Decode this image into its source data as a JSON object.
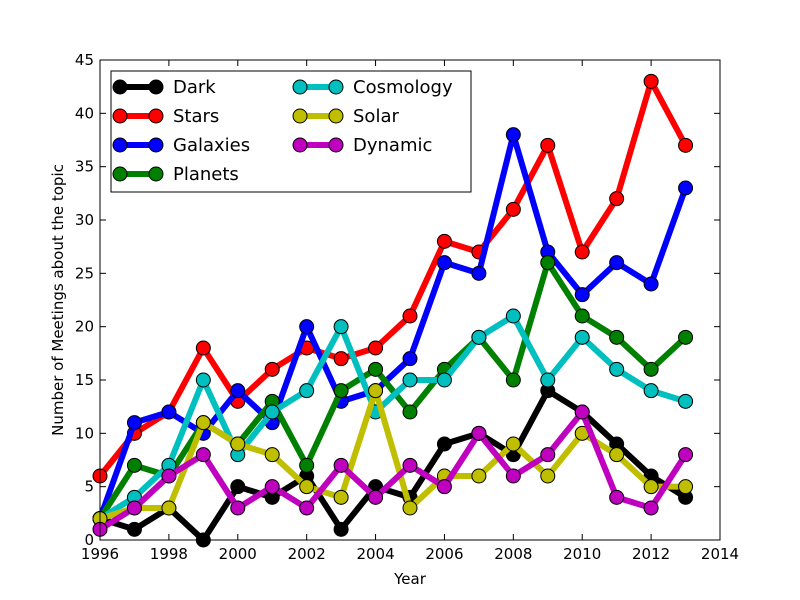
{
  "chart_data": {
    "type": "line",
    "title": "",
    "xlabel": "Year",
    "ylabel": "Number of Meetings about the topic",
    "xlim": [
      1996,
      2014
    ],
    "ylim": [
      0,
      45
    ],
    "xticks": [
      1996,
      1998,
      2000,
      2002,
      2004,
      2006,
      2008,
      2010,
      2012,
      2014
    ],
    "yticks": [
      0,
      5,
      10,
      15,
      20,
      25,
      30,
      35,
      40,
      45
    ],
    "grid": false,
    "legend_position": "top-left",
    "legend_columns": 2,
    "x": [
      1996,
      1997,
      1998,
      1999,
      2000,
      2001,
      2002,
      2003,
      2004,
      2005,
      2006,
      2007,
      2008,
      2009,
      2010,
      2011,
      2012,
      2013
    ],
    "series": [
      {
        "name": "Dark",
        "color": "#000000",
        "values": [
          2,
          1,
          3,
          0,
          5,
          4,
          6,
          1,
          5,
          4,
          9,
          10,
          8,
          14,
          12,
          9,
          6,
          4
        ]
      },
      {
        "name": "Stars",
        "color": "#ff0000",
        "values": [
          6,
          10,
          12,
          18,
          13,
          16,
          18,
          17,
          18,
          21,
          28,
          27,
          31,
          37,
          27,
          32,
          43,
          37
        ]
      },
      {
        "name": "Galaxies",
        "color": "#0000ff",
        "values": [
          2,
          11,
          12,
          10,
          14,
          11,
          20,
          13,
          14,
          17,
          26,
          25,
          38,
          27,
          23,
          26,
          24,
          33
        ]
      },
      {
        "name": "Planets",
        "color": "#008000",
        "values": [
          2,
          7,
          6,
          11,
          9,
          13,
          7,
          14,
          16,
          12,
          16,
          19,
          15,
          26,
          21,
          19,
          16,
          19
        ]
      },
      {
        "name": "Cosmology",
        "color": "#00bfbf",
        "values": [
          2,
          4,
          7,
          15,
          8,
          12,
          14,
          20,
          12,
          15,
          15,
          19,
          21,
          15,
          19,
          16,
          14,
          13
        ]
      },
      {
        "name": "Solar",
        "color": "#bfbf00",
        "values": [
          2,
          3,
          3,
          11,
          9,
          8,
          5,
          4,
          14,
          3,
          6,
          6,
          9,
          6,
          10,
          8,
          5,
          5
        ]
      },
      {
        "name": "Dynamic",
        "color": "#bf00bf",
        "values": [
          1,
          3,
          6,
          8,
          3,
          5,
          3,
          7,
          4,
          7,
          5,
          10,
          6,
          8,
          12,
          4,
          3,
          8
        ]
      }
    ]
  }
}
